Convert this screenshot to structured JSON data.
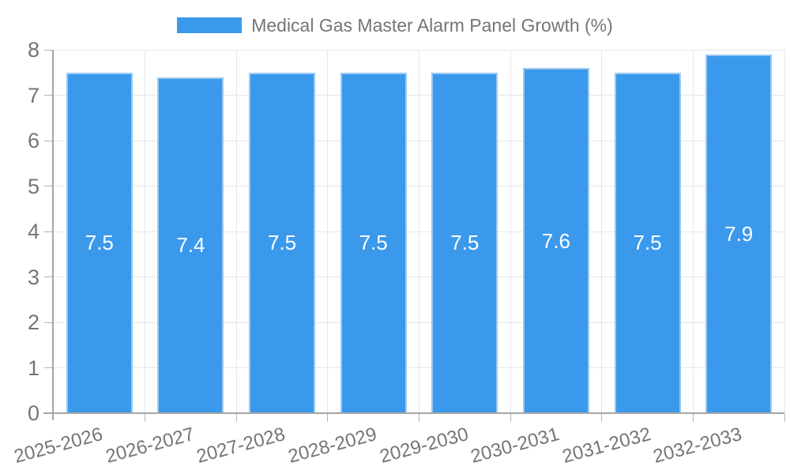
{
  "legend": {
    "label": "Medical Gas Master Alarm Panel Growth (%)"
  },
  "chart_data": {
    "type": "bar",
    "title": "Medical Gas Master Alarm Panel Growth (%)",
    "categories": [
      "2025-2026",
      "2026-2027",
      "2027-2028",
      "2028-2029",
      "2029-2030",
      "2030-2031",
      "2031-2032",
      "2032-2033"
    ],
    "values": [
      7.5,
      7.4,
      7.5,
      7.5,
      7.5,
      7.6,
      7.5,
      7.9
    ],
    "xlabel": "",
    "ylabel": "",
    "yticks": [
      0,
      1,
      2,
      3,
      4,
      5,
      6,
      7,
      8
    ],
    "ylim": [
      0,
      8
    ],
    "grid": true,
    "legend_position": "top",
    "colors": {
      "bar_fill": "#3b99ec",
      "bar_border": "#9cc9f2",
      "grid": "#e6e6e6",
      "axis": "#a6a6a6",
      "tick_mark": "#b3b3b3",
      "tick_text": "#757575",
      "value_text": "#ffffff"
    }
  }
}
